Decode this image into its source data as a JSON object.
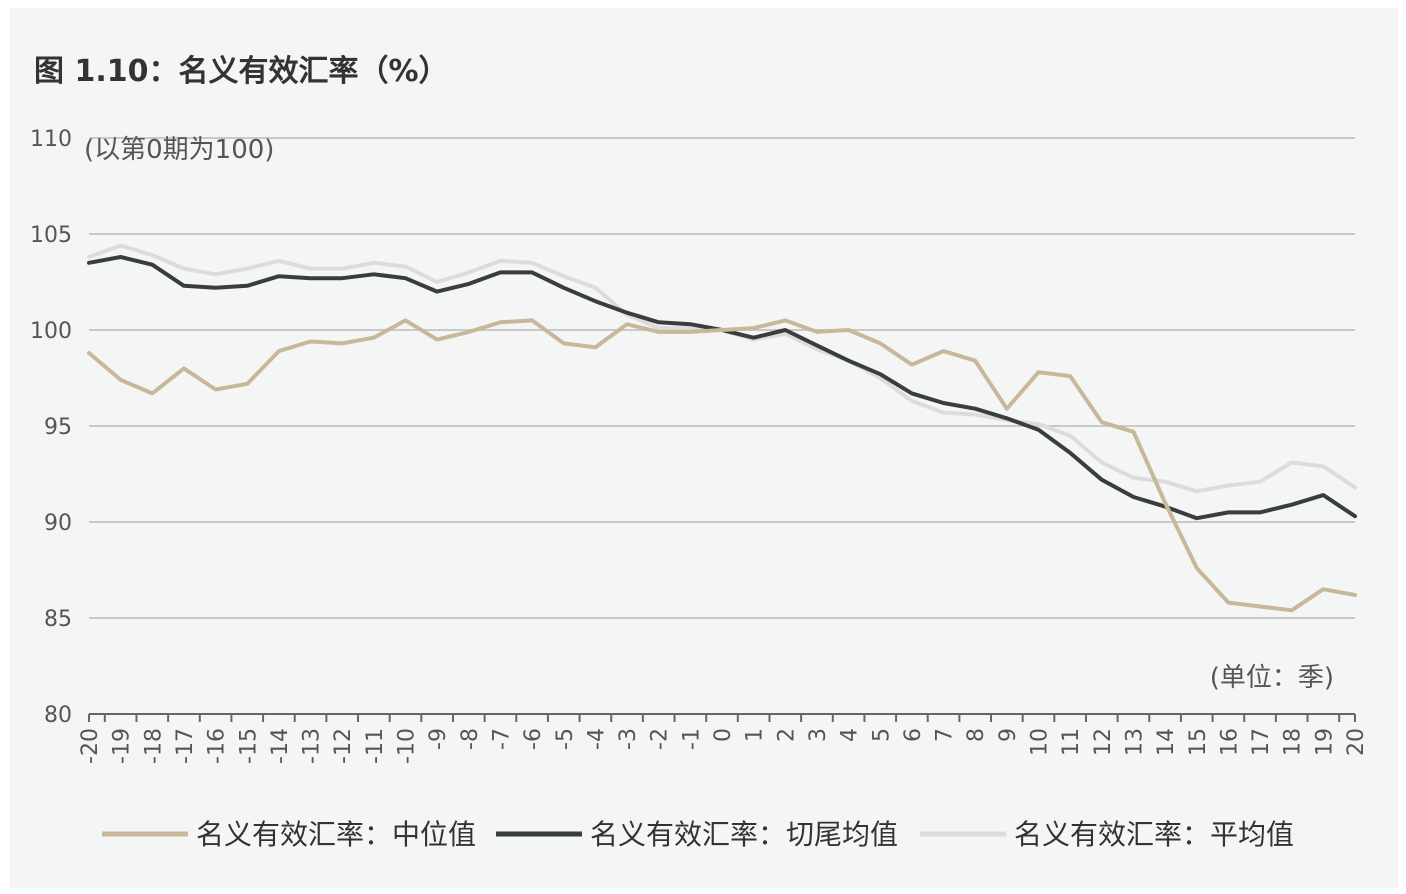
{
  "chart_data": {
    "type": "line",
    "title": "图 1.10：名义有效汇率（%）",
    "ylabel_note": "(以第0期为100)",
    "xlabel_note": "(单位：季)",
    "ylim": [
      80,
      110
    ],
    "yticks": [
      80,
      85,
      90,
      95,
      100,
      105,
      110
    ],
    "grid": true,
    "legend_position": "bottom",
    "x": [
      -20,
      -19,
      -18,
      -17,
      -16,
      -15,
      -14,
      -13,
      -12,
      -11,
      -10,
      -9,
      -8,
      -7,
      -6,
      -5,
      -4,
      -3,
      -2,
      -1,
      0,
      1,
      2,
      3,
      4,
      5,
      6,
      7,
      8,
      9,
      10,
      11,
      12,
      13,
      14,
      15,
      16,
      17,
      18,
      19,
      20
    ],
    "series": [
      {
        "name": "名义有效汇率：中位值",
        "color": "#c8b89a",
        "values": [
          98.8,
          97.4,
          96.7,
          98.0,
          96.9,
          97.2,
          98.9,
          99.4,
          99.3,
          99.6,
          100.5,
          99.5,
          99.9,
          100.4,
          100.5,
          99.3,
          99.1,
          100.3,
          99.9,
          99.9,
          100.0,
          100.1,
          100.5,
          99.9,
          100.0,
          99.3,
          98.2,
          98.9,
          98.4,
          95.9,
          97.8,
          97.6,
          95.2,
          94.7,
          91.0,
          87.6,
          85.8,
          85.6,
          85.4,
          86.5,
          86.2
        ]
      },
      {
        "name": "名义有效汇率：切尾均值",
        "color": "#3a3d3d",
        "values": [
          103.5,
          103.8,
          103.4,
          102.3,
          102.2,
          102.3,
          102.8,
          102.7,
          102.7,
          102.9,
          102.7,
          102.0,
          102.4,
          103.0,
          103.0,
          102.2,
          101.5,
          100.9,
          100.4,
          100.3,
          100.0,
          99.6,
          100.0,
          99.2,
          98.4,
          97.7,
          96.7,
          96.2,
          95.9,
          95.4,
          94.8,
          93.6,
          92.2,
          91.3,
          90.8,
          90.2,
          90.5,
          90.5,
          90.9,
          91.4,
          90.3
        ]
      },
      {
        "name": "名义有效汇率：平均值",
        "color": "#dcdcdc",
        "values": [
          103.8,
          104.4,
          103.9,
          103.2,
          102.9,
          103.2,
          103.6,
          103.2,
          103.2,
          103.5,
          103.3,
          102.5,
          103.0,
          103.6,
          103.5,
          102.8,
          102.2,
          100.8,
          100.1,
          100.1,
          100.0,
          99.5,
          99.8,
          99.0,
          98.4,
          97.5,
          96.3,
          95.7,
          95.6,
          95.3,
          95.1,
          94.5,
          93.1,
          92.3,
          92.1,
          91.6,
          91.9,
          92.1,
          93.1,
          92.9,
          91.8
        ]
      }
    ]
  }
}
